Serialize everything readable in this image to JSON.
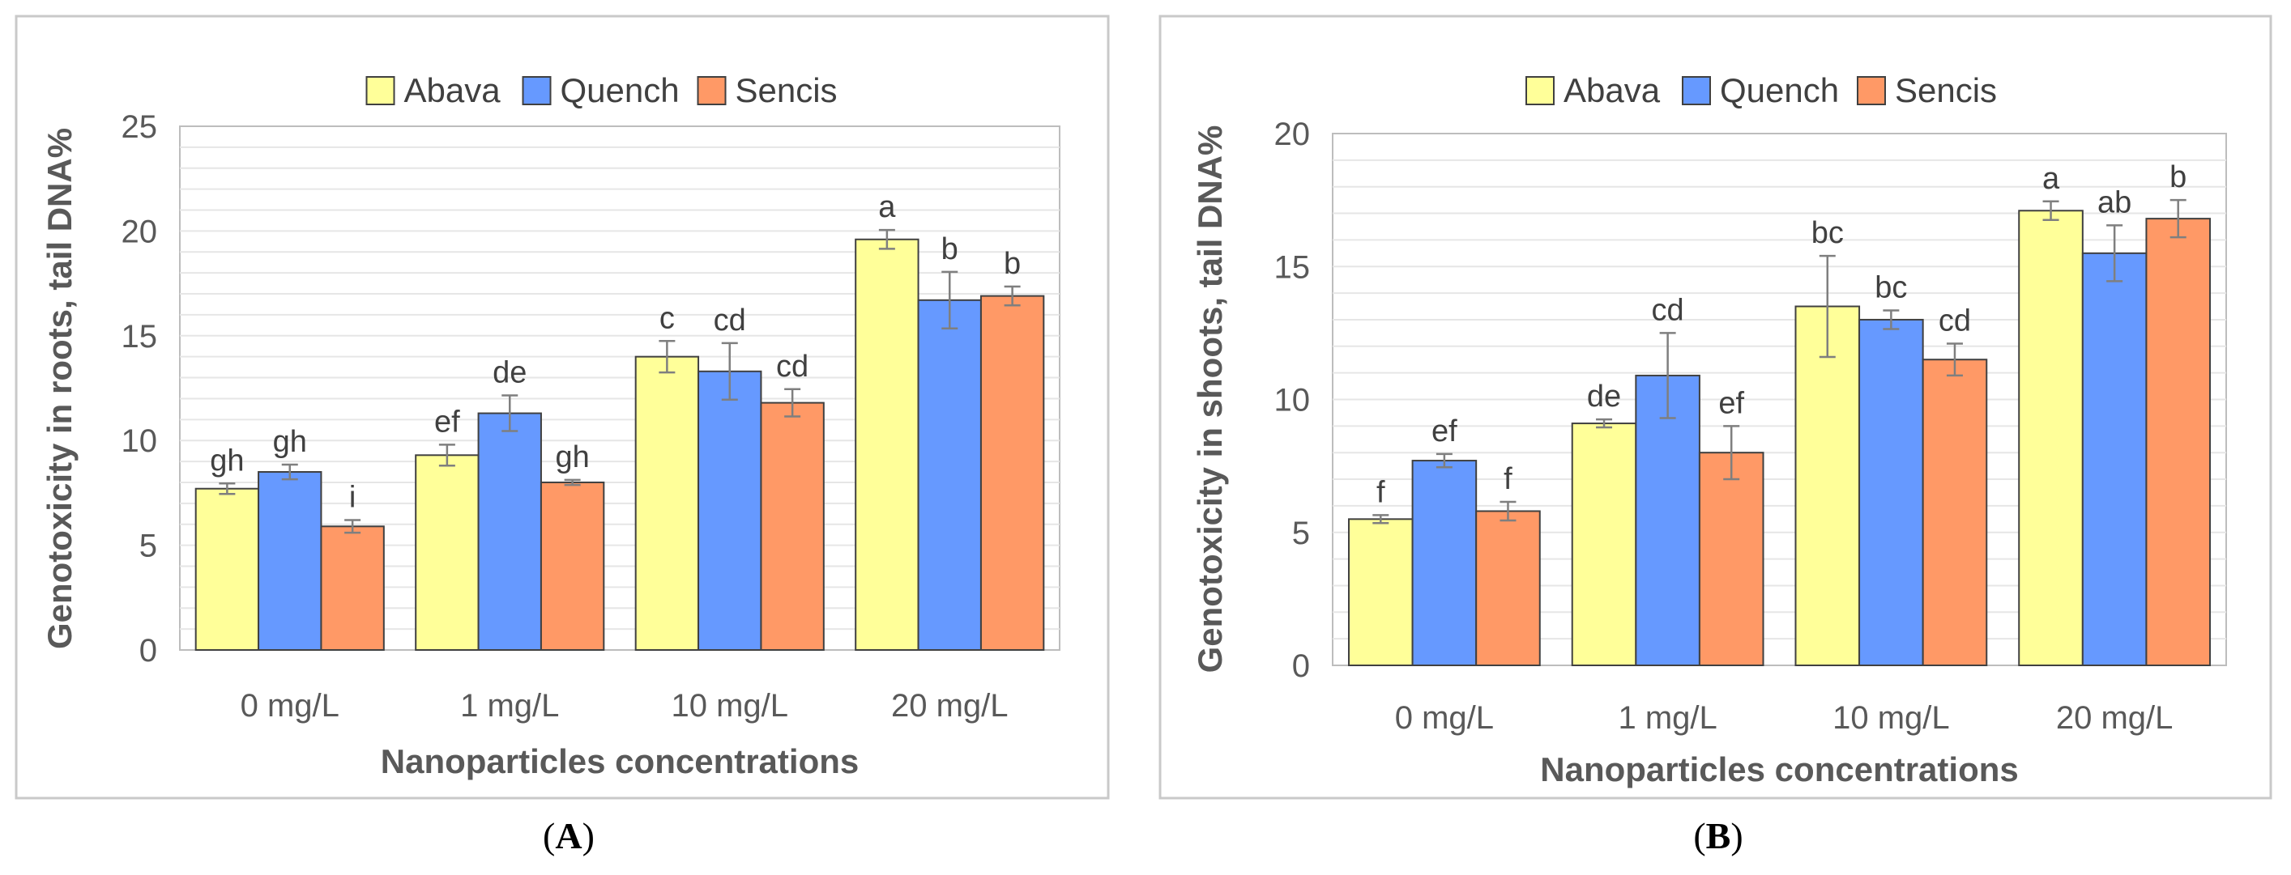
{
  "chart_data": [
    {
      "type": "bar",
      "panel_label": "A",
      "title": "",
      "xlabel": "Nanoparticles concentrations",
      "ylabel": "Genotoxicity in roots, tail DNA%",
      "ylim": [
        0,
        25
      ],
      "yticks": [
        "0",
        "5",
        "10",
        "15",
        "20",
        "25"
      ],
      "ytick_values": [
        0,
        5,
        10,
        15,
        20,
        25
      ],
      "categories": [
        "0 mg/L",
        "1 mg/L",
        "10 mg/L",
        "20 mg/L"
      ],
      "legend_position": "top-center",
      "grid": true,
      "series": [
        {
          "name": "Abava",
          "color": "#ffff99",
          "values": [
            7.7,
            9.3,
            14.0,
            19.6
          ],
          "errors": [
            0.25,
            0.5,
            0.75,
            0.45
          ],
          "labels": [
            "gh",
            "ef",
            "c",
            "a"
          ]
        },
        {
          "name": "Quench",
          "color": "#6699ff",
          "values": [
            8.5,
            11.3,
            13.3,
            16.7
          ],
          "errors": [
            0.35,
            0.85,
            1.35,
            1.35
          ],
          "labels": [
            "gh",
            "de",
            "cd",
            "b"
          ]
        },
        {
          "name": "Sencis",
          "color": "#ff9966",
          "values": [
            5.9,
            8.0,
            11.8,
            16.9
          ],
          "errors": [
            0.3,
            0.12,
            0.65,
            0.45
          ],
          "labels": [
            "i",
            "gh",
            "cd",
            "b"
          ]
        }
      ]
    },
    {
      "type": "bar",
      "panel_label": "B",
      "title": "",
      "xlabel": "Nanoparticles concentrations",
      "ylabel": "Genotoxicity in shoots, tail DNA%",
      "ylim": [
        0,
        20
      ],
      "yticks": [
        "0",
        "5",
        "10",
        "15",
        "20"
      ],
      "ytick_values": [
        0,
        5,
        10,
        15,
        20
      ],
      "categories": [
        "0 mg/L",
        "1 mg/L",
        "10 mg/L",
        "20 mg/L"
      ],
      "legend_position": "top-center",
      "grid": true,
      "series": [
        {
          "name": "Abava",
          "color": "#ffff99",
          "values": [
            5.5,
            9.1,
            13.5,
            17.1
          ],
          "errors": [
            0.15,
            0.15,
            1.9,
            0.35
          ],
          "labels": [
            "f",
            "de",
            "bc",
            "a"
          ]
        },
        {
          "name": "Quench",
          "color": "#6699ff",
          "values": [
            7.7,
            10.9,
            13.0,
            15.5
          ],
          "errors": [
            0.25,
            1.6,
            0.35,
            1.05
          ],
          "labels": [
            "ef",
            "cd",
            "bc",
            "ab"
          ]
        },
        {
          "name": "Sencis",
          "color": "#ff9966",
          "values": [
            5.8,
            8.0,
            11.5,
            16.8
          ],
          "errors": [
            0.35,
            1.0,
            0.6,
            0.7
          ],
          "labels": [
            "f",
            "ef",
            "cd",
            "b"
          ]
        }
      ]
    }
  ]
}
